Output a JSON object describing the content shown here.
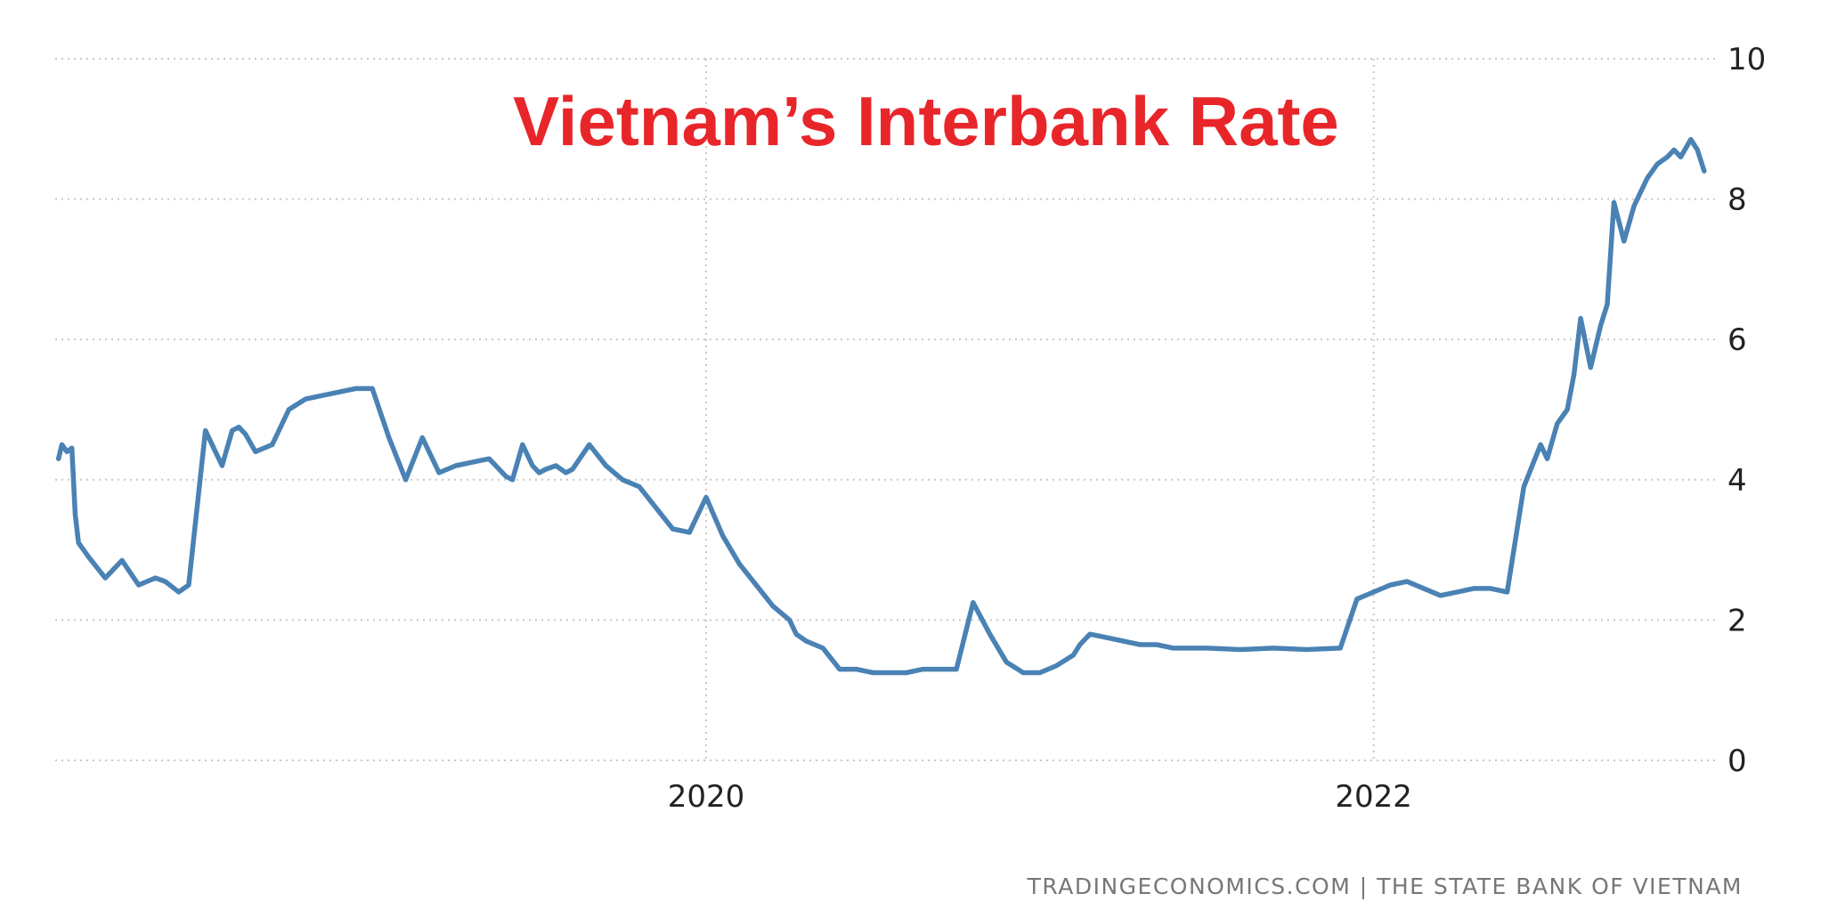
{
  "colors": {
    "series": "#4a82b4",
    "title": "#e8262a",
    "grid": "#c8c8c8",
    "source": "#777777"
  },
  "source": {
    "text": "TRADINGECONOMICS.COM  |  THE STATE BANK OF VIETNAM"
  },
  "chart_data": {
    "type": "line",
    "title": "Vietnam’s Interbank Rate",
    "xlabel": "",
    "ylabel": "",
    "ylim": [
      0,
      10
    ],
    "xlim": [
      2018.05,
      2023.02
    ],
    "y_ticks": [
      0,
      2,
      4,
      6,
      8,
      10
    ],
    "x_ticks": [
      2020,
      2022
    ],
    "x_tick_labels": [
      "2020",
      "2022"
    ],
    "grid": true,
    "y_axis_position": "right",
    "series": [
      {
        "x": [
          2018.06,
          2018.07,
          2018.085,
          2018.1,
          2018.11,
          2018.12,
          2018.15,
          2018.2,
          2018.25,
          2018.3,
          2018.35,
          2018.38,
          2018.42,
          2018.45,
          2018.5,
          2018.55,
          2018.58,
          2018.6,
          2018.62,
          2018.65,
          2018.7,
          2018.75,
          2018.8,
          2018.85,
          2018.9,
          2018.95,
          2019.0,
          2019.05,
          2019.1,
          2019.15,
          2019.2,
          2019.25,
          2019.3,
          2019.35,
          2019.4,
          2019.42,
          2019.45,
          2019.48,
          2019.5,
          2019.52,
          2019.55,
          2019.58,
          2019.6,
          2019.65,
          2019.7,
          2019.75,
          2019.8,
          2019.85,
          2019.9,
          2019.95,
          2020.0,
          2020.05,
          2020.1,
          2020.15,
          2020.2,
          2020.25,
          2020.27,
          2020.3,
          2020.35,
          2020.4,
          2020.45,
          2020.5,
          2020.55,
          2020.6,
          2020.65,
          2020.7,
          2020.75,
          2020.8,
          2020.85,
          2020.9,
          2020.95,
          2021.0,
          2021.05,
          2021.1,
          2021.12,
          2021.15,
          2021.2,
          2021.25,
          2021.3,
          2021.35,
          2021.4,
          2021.5,
          2021.6,
          2021.7,
          2021.8,
          2021.9,
          2021.95,
          2022.0,
          2022.05,
          2022.1,
          2022.15,
          2022.2,
          2022.25,
          2022.3,
          2022.35,
          2022.4,
          2022.45,
          2022.5,
          2022.52,
          2022.55,
          2022.58,
          2022.6,
          2022.62,
          2022.65,
          2022.68,
          2022.7,
          2022.72,
          2022.75,
          2022.78,
          2022.8,
          2022.82,
          2022.85,
          2022.88,
          2022.9,
          2022.92,
          2022.95,
          2022.97,
          2022.99
        ],
        "values": [
          4.3,
          4.5,
          4.4,
          4.45,
          3.5,
          3.1,
          2.9,
          2.6,
          2.85,
          2.5,
          2.6,
          2.55,
          2.4,
          2.5,
          4.7,
          4.2,
          4.7,
          4.75,
          4.65,
          4.4,
          4.5,
          5.0,
          5.15,
          5.2,
          5.25,
          5.3,
          5.3,
          4.6,
          4.0,
          4.6,
          4.1,
          4.2,
          4.25,
          4.3,
          4.05,
          4.0,
          4.5,
          4.2,
          4.1,
          4.15,
          4.2,
          4.1,
          4.15,
          4.5,
          4.2,
          4.0,
          3.9,
          3.6,
          3.3,
          3.25,
          3.75,
          3.2,
          2.8,
          2.5,
          2.2,
          2.0,
          1.8,
          1.7,
          1.6,
          1.3,
          1.3,
          1.25,
          1.25,
          1.25,
          1.3,
          1.3,
          1.3,
          2.25,
          1.8,
          1.4,
          1.25,
          1.25,
          1.35,
          1.5,
          1.65,
          1.8,
          1.75,
          1.7,
          1.65,
          1.65,
          1.6,
          1.6,
          1.58,
          1.6,
          1.58,
          1.6,
          2.3,
          2.4,
          2.5,
          2.55,
          2.45,
          2.35,
          2.4,
          2.45,
          2.45,
          2.4,
          3.9,
          4.5,
          4.3,
          4.8,
          5.0,
          5.5,
          6.3,
          5.6,
          6.2,
          6.5,
          7.95,
          7.4,
          7.9,
          8.1,
          8.3,
          8.5,
          8.6,
          8.7,
          8.6,
          8.85,
          8.7,
          8.4
        ]
      }
    ]
  }
}
